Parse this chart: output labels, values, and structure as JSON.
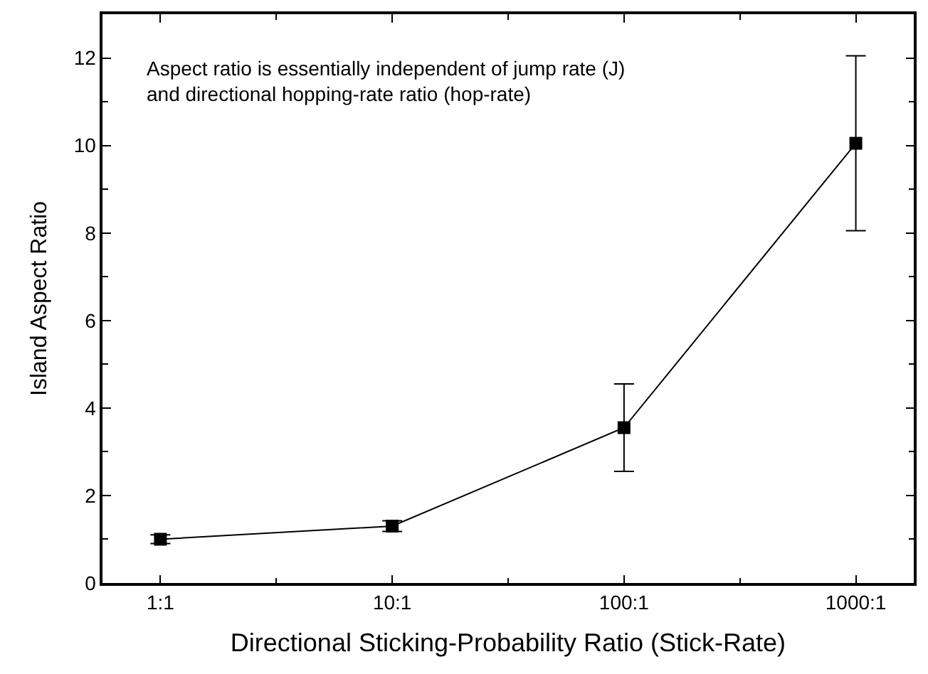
{
  "chart_data": {
    "type": "line",
    "xlabel": "Directional Sticking-Probability Ratio (Stick-Rate)",
    "ylabel": "Island Aspect Ratio",
    "categories": [
      "1:1",
      "10:1",
      "100:1",
      "1000:1"
    ],
    "series": [
      {
        "color": "#000000",
        "values": [
          1.0,
          1.3,
          3.55,
          10.05
        ],
        "errors": [
          0.1,
          0.12,
          1.0,
          2.0
        ]
      }
    ],
    "ylim": [
      0,
      13
    ],
    "yticks": [
      0,
      2,
      4,
      6,
      8,
      10,
      12
    ],
    "marker": "square",
    "line_style": "solid",
    "annotations": [
      "Aspect ratio is essentially independent of jump rate (J)\nand directional hopping-rate ratio (hop-rate)"
    ]
  }
}
